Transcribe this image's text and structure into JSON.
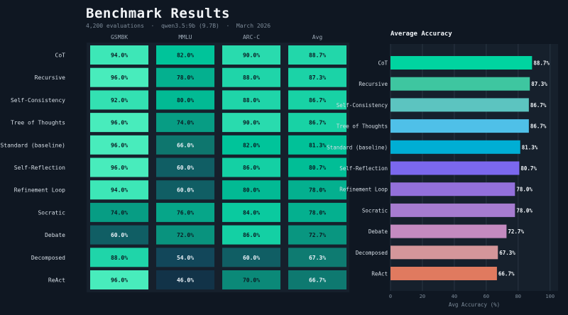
{
  "page": {
    "title": "Benchmark Results",
    "subtitle": "4,200 evaluations  ·  qwen3.5:9b (9.7B)  ·  March 2026"
  },
  "colors": {
    "background": "#0f1722",
    "panel": "#16202c",
    "heat_low": "#12243a",
    "heat_high": "#5cf8c6"
  },
  "chart_data": [
    {
      "type": "heatmap",
      "title": "",
      "columns": [
        "GSM8K",
        "MMLU",
        "ARC-C",
        "Avg"
      ],
      "rows": [
        "CoT",
        "Recursive",
        "Self-Consistency",
        "Tree of Thoughts",
        "Standard (baseline)",
        "Self-Reflection",
        "Refinement Loop",
        "Socratic",
        "Debate",
        "Decomposed",
        "ReAct"
      ],
      "values": [
        [
          94.0,
          82.0,
          90.0,
          88.7
        ],
        [
          96.0,
          78.0,
          88.0,
          87.3
        ],
        [
          92.0,
          80.0,
          88.0,
          86.7
        ],
        [
          96.0,
          74.0,
          90.0,
          86.7
        ],
        [
          96.0,
          66.0,
          82.0,
          81.3
        ],
        [
          96.0,
          60.0,
          86.0,
          80.7
        ],
        [
          94.0,
          60.0,
          80.0,
          78.0
        ],
        [
          74.0,
          76.0,
          84.0,
          78.0
        ],
        [
          60.0,
          72.0,
          86.0,
          72.7
        ],
        [
          88.0,
          54.0,
          60.0,
          67.3
        ],
        [
          96.0,
          46.0,
          70.0,
          66.7
        ]
      ],
      "value_suffix": "%"
    },
    {
      "type": "bar",
      "orientation": "horizontal",
      "title": "Average Accuracy",
      "categories": [
        "CoT",
        "Recursive",
        "Self-Consistency",
        "Tree of Thoughts",
        "Standard (baseline)",
        "Self-Reflection",
        "Refinement Loop",
        "Socratic",
        "Debate",
        "Decomposed",
        "ReAct"
      ],
      "values": [
        88.7,
        87.3,
        86.7,
        86.7,
        81.3,
        80.7,
        78.0,
        78.0,
        72.7,
        67.3,
        66.7
      ],
      "bar_colors": [
        "#00d4a0",
        "#3ec6a0",
        "#5cc4c0",
        "#4fc0e8",
        "#00aed4",
        "#7b68ee",
        "#9370db",
        "#a67cd0",
        "#c48ac0",
        "#d4969a",
        "#e07a5f"
      ],
      "value_suffix": "%",
      "xlabel": "Avg Accuracy (%)",
      "xlim": [
        0,
        105
      ],
      "xticks": [
        0,
        20,
        40,
        60,
        80,
        100
      ],
      "grid": true
    }
  ]
}
